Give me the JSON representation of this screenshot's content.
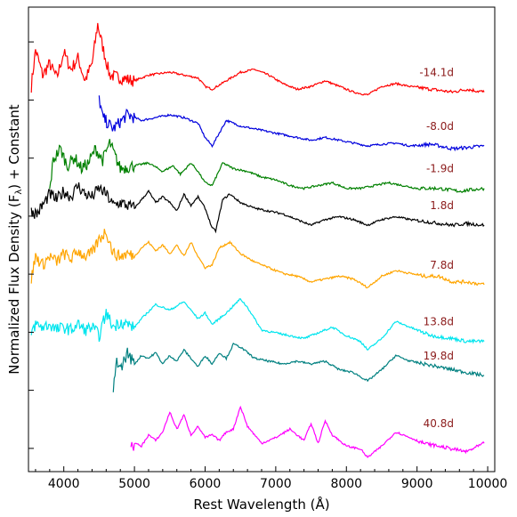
{
  "chart_data": {
    "type": "line",
    "xlabel": "Rest Wavelength (Å)",
    "ylabel": "Normalized Flux Density (F",
    "ylabel_sub": "λ",
    "ylabel_tail": ") + Constant",
    "xlim": [
      3500,
      10100
    ],
    "x_ticks": [
      4000,
      5000,
      6000,
      7000,
      8000,
      9000,
      10000
    ],
    "x_tick_labels": [
      "4000",
      "5000",
      "6000",
      "7000",
      "8000",
      "9000",
      "10000"
    ],
    "y_tick_count": 8,
    "grid": false,
    "legend": "inline labels at right",
    "series": [
      {
        "name": "-14.1d",
        "color": "#ff0000",
        "x": [
          3540,
          3600,
          3700,
          3800,
          3900,
          4000,
          4100,
          4200,
          4300,
          4400,
          4480,
          4550,
          4650,
          4800,
          5000,
          5200,
          5500,
          5700,
          5900,
          6000,
          6100,
          6300,
          6500,
          6700,
          6900,
          7100,
          7300,
          7500,
          7700,
          7900,
          8100,
          8300,
          8500,
          8700,
          8900,
          9200,
          9500,
          9700,
          9950
        ],
        "y": [
          1.8,
          2.45,
          2.0,
          2.2,
          1.95,
          2.4,
          2.1,
          2.3,
          1.9,
          2.2,
          2.9,
          2.5,
          2.0,
          1.95,
          1.9,
          2.0,
          2.05,
          2.0,
          1.95,
          1.8,
          1.75,
          1.9,
          2.05,
          2.1,
          2.0,
          1.85,
          1.75,
          1.8,
          1.9,
          1.8,
          1.7,
          1.65,
          1.8,
          1.85,
          1.8,
          1.75,
          1.7,
          1.75,
          1.7
        ]
      },
      {
        "name": "-8.0d",
        "color": "#0000dd",
        "x": [
          4500,
          4550,
          4700,
          4900,
          5100,
          5300,
          5500,
          5700,
          5900,
          6000,
          6100,
          6300,
          6500,
          6700,
          6900,
          7100,
          7300,
          7500,
          7700,
          7900,
          8100,
          8300,
          8500,
          8700,
          8900,
          9200,
          9500,
          9700,
          9950
        ],
        "y": [
          1.6,
          1.25,
          1.05,
          1.3,
          1.2,
          1.25,
          1.3,
          1.25,
          1.15,
          0.9,
          0.75,
          1.2,
          1.1,
          1.05,
          1.0,
          0.95,
          0.9,
          0.85,
          0.9,
          0.85,
          0.8,
          0.75,
          0.78,
          0.8,
          0.75,
          0.78,
          0.7,
          0.72,
          0.75
        ]
      },
      {
        "name": "-1.9d",
        "color": "#008000",
        "x": [
          3800,
          3850,
          3950,
          4050,
          4150,
          4250,
          4350,
          4450,
          4550,
          4650,
          4800,
          5000,
          5200,
          5400,
          5550,
          5650,
          5800,
          5900,
          6000,
          6100,
          6250,
          6400,
          6600,
          6800,
          7000,
          7200,
          7400,
          7600,
          7800,
          8000,
          8200,
          8400,
          8600,
          8800,
          9000,
          9300,
          9600,
          9950
        ],
        "y": [
          -0.05,
          0.5,
          0.7,
          0.4,
          0.55,
          0.35,
          0.45,
          0.7,
          0.5,
          0.8,
          0.35,
          0.4,
          0.45,
          0.3,
          0.4,
          0.25,
          0.45,
          0.3,
          0.1,
          0.05,
          0.45,
          0.35,
          0.3,
          0.2,
          0.15,
          0.05,
          0.0,
          0.05,
          0.1,
          0.0,
          0.0,
          0.05,
          0.1,
          0.05,
          0.0,
          0.0,
          -0.05,
          0.0
        ]
      },
      {
        "name": "1.8d",
        "color": "#000000",
        "x": [
          3540,
          3620,
          3700,
          3800,
          3900,
          4000,
          4100,
          4200,
          4300,
          4400,
          4500,
          4600,
          4700,
          4800,
          5000,
          5100,
          5200,
          5300,
          5400,
          5500,
          5600,
          5700,
          5800,
          5900,
          6000,
          6100,
          6150,
          6250,
          6350,
          6500,
          6700,
          6900,
          7100,
          7300,
          7500,
          7700,
          7900,
          8100,
          8300,
          8500,
          8700,
          8900,
          9200,
          9500,
          9700,
          9950
        ],
        "y": [
          -0.4,
          -0.45,
          -0.3,
          -0.1,
          -0.2,
          -0.05,
          -0.15,
          0.05,
          -0.1,
          -0.15,
          0.0,
          -0.1,
          -0.3,
          -0.25,
          -0.35,
          -0.2,
          -0.05,
          -0.25,
          -0.15,
          -0.25,
          -0.4,
          -0.1,
          -0.3,
          -0.15,
          -0.35,
          -0.7,
          -0.75,
          -0.2,
          -0.1,
          -0.25,
          -0.35,
          -0.4,
          -0.45,
          -0.55,
          -0.65,
          -0.55,
          -0.5,
          -0.55,
          -0.65,
          -0.55,
          -0.5,
          -0.55,
          -0.6,
          -0.65,
          -0.62,
          -0.65
        ]
      },
      {
        "name": "7.8d",
        "color": "#ffa500",
        "x": [
          3540,
          3600,
          3700,
          3800,
          3900,
          4000,
          4100,
          4200,
          4300,
          4400,
          4500,
          4600,
          4700,
          4800,
          4900,
          5000,
          5100,
          5200,
          5300,
          5400,
          5500,
          5600,
          5700,
          5800,
          5900,
          6000,
          6100,
          6200,
          6350,
          6500,
          6700,
          6900,
          7100,
          7300,
          7500,
          7700,
          7900,
          8100,
          8300,
          8500,
          8700,
          8900,
          9100,
          9300,
          9500,
          9700,
          9950
        ],
        "y": [
          -1.6,
          -1.2,
          -1.35,
          -1.2,
          -1.3,
          -1.15,
          -1.25,
          -1.1,
          -1.2,
          -1.15,
          -0.9,
          -0.75,
          -1.15,
          -1.2,
          -1.15,
          -1.2,
          -1.05,
          -0.95,
          -1.1,
          -1.0,
          -1.15,
          -1.0,
          -1.2,
          -0.95,
          -1.2,
          -1.4,
          -1.35,
          -1.05,
          -0.95,
          -1.15,
          -1.3,
          -1.4,
          -1.5,
          -1.55,
          -1.65,
          -1.6,
          -1.55,
          -1.6,
          -1.75,
          -1.55,
          -1.45,
          -1.5,
          -1.55,
          -1.55,
          -1.65,
          -1.65,
          -1.7
        ]
      },
      {
        "name": "13.8d",
        "color": "#00e5ee",
        "x": [
          3540,
          3600,
          3700,
          3800,
          3900,
          4000,
          4100,
          4200,
          4300,
          4400,
          4500,
          4600,
          4700,
          4800,
          4900,
          5000,
          5100,
          5300,
          5500,
          5700,
          5900,
          6000,
          6100,
          6300,
          6500,
          6600,
          6800,
          7000,
          7200,
          7400,
          7600,
          7800,
          8000,
          8200,
          8300,
          8500,
          8700,
          8900,
          9200,
          9500,
          9700,
          9950
        ],
        "y": [
          -2.55,
          -2.4,
          -2.45,
          -2.4,
          -2.5,
          -2.45,
          -2.5,
          -2.4,
          -2.5,
          -2.45,
          -2.6,
          -2.2,
          -2.45,
          -2.35,
          -2.4,
          -2.45,
          -2.3,
          -2.05,
          -2.15,
          -2.0,
          -2.3,
          -2.2,
          -2.4,
          -2.2,
          -1.95,
          -2.1,
          -2.5,
          -2.55,
          -2.6,
          -2.65,
          -2.55,
          -2.45,
          -2.6,
          -2.7,
          -2.85,
          -2.65,
          -2.35,
          -2.45,
          -2.6,
          -2.65,
          -2.7,
          -2.7
        ]
      },
      {
        "name": "19.8d",
        "color": "#008080",
        "x": [
          4700,
          4750,
          4800,
          4900,
          5000,
          5100,
          5200,
          5300,
          5400,
          5500,
          5600,
          5700,
          5800,
          5900,
          6000,
          6100,
          6200,
          6300,
          6400,
          6500,
          6700,
          6900,
          7100,
          7300,
          7500,
          7700,
          7900,
          8100,
          8300,
          8500,
          8700,
          8900,
          9100,
          9300,
          9500,
          9700,
          9950
        ],
        "y": [
          -3.6,
          -3.0,
          -3.2,
          -2.9,
          -3.1,
          -2.95,
          -3.0,
          -2.9,
          -3.1,
          -2.95,
          -3.05,
          -2.85,
          -3.0,
          -3.15,
          -2.95,
          -3.1,
          -2.9,
          -3.0,
          -2.75,
          -2.8,
          -3.0,
          -3.05,
          -3.1,
          -3.05,
          -3.1,
          -3.05,
          -3.2,
          -3.25,
          -3.4,
          -3.2,
          -2.95,
          -3.05,
          -3.1,
          -3.15,
          -3.2,
          -3.25,
          -3.3
        ]
      },
      {
        "name": "40.8d",
        "color": "#ff00ff",
        "x": [
          4950,
          5000,
          5100,
          5200,
          5300,
          5400,
          5500,
          5600,
          5700,
          5800,
          5900,
          6000,
          6100,
          6200,
          6300,
          6400,
          6500,
          6600,
          6800,
          7000,
          7200,
          7400,
          7500,
          7600,
          7700,
          7800,
          8000,
          8200,
          8300,
          8500,
          8700,
          8900,
          9100,
          9300,
          9500,
          9700,
          9950
        ],
        "y": [
          -4.6,
          -4.5,
          -4.55,
          -4.35,
          -4.45,
          -4.3,
          -3.95,
          -4.25,
          -4.0,
          -4.35,
          -4.2,
          -4.4,
          -4.35,
          -4.45,
          -4.3,
          -4.25,
          -3.85,
          -4.2,
          -4.5,
          -4.4,
          -4.25,
          -4.45,
          -4.15,
          -4.5,
          -4.1,
          -4.35,
          -4.55,
          -4.6,
          -4.75,
          -4.55,
          -4.3,
          -4.4,
          -4.5,
          -4.55,
          -4.6,
          -4.65,
          -4.5
        ]
      }
    ]
  }
}
